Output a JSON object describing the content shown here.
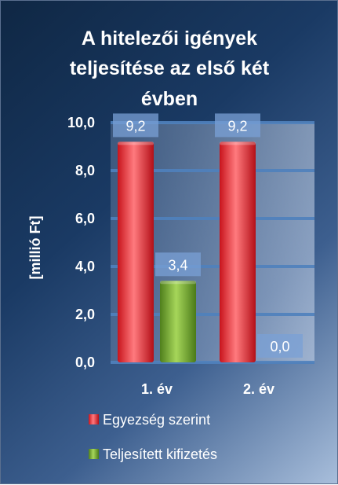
{
  "chart_data": {
    "type": "bar",
    "title": "A hitelezői igények teljesítése az első két évben",
    "title_lines": [
      "A hitelezői igények",
      "teljesítése az első két",
      "évben"
    ],
    "categories": [
      "1. év",
      "2. év"
    ],
    "series": [
      {
        "name": "Egyezség szerint",
        "values": [
          9.2,
          9.2
        ],
        "labels": [
          "9,2",
          "9,2"
        ],
        "color": "#e8262e"
      },
      {
        "name": "Teljesített kifizetés",
        "values": [
          3.4,
          0.0
        ],
        "labels": [
          "3,4",
          "0,0"
        ],
        "color": "#6fa82e"
      }
    ],
    "ylabel": "[millió Ft]",
    "ylim": [
      0,
      10
    ],
    "yticks": [
      "0,0",
      "2,0",
      "4,0",
      "6,0",
      "8,0",
      "10,0"
    ],
    "grid": true,
    "legend_position": "bottom"
  }
}
